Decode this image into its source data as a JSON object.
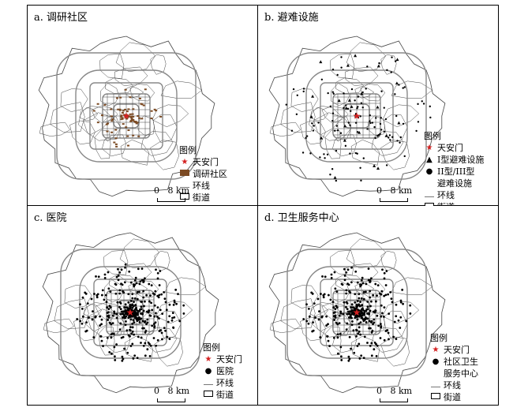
{
  "panels": [
    {
      "title": "a. 调研社区",
      "legend_title": "图例",
      "legend_items": [
        {
          "symbol": "star-icon",
          "label": "天安门"
        },
        {
          "symbol": "brown-square-icon",
          "label": "调研社区"
        },
        {
          "symbol": "line-icon",
          "label": "环线"
        },
        {
          "symbol": "square-icon",
          "label": "街道"
        }
      ],
      "scale": {
        "zero": "0",
        "dist": "8 km"
      }
    },
    {
      "title": "b. 避难设施",
      "legend_title": "图例",
      "legend_items": [
        {
          "symbol": "star-icon",
          "label": "天安门"
        },
        {
          "symbol": "triangle-icon",
          "label": "I型避难设施"
        },
        {
          "symbol": "dot-icon",
          "label": "II型/III型\n避难设施"
        },
        {
          "symbol": "line-icon",
          "label": "环线"
        },
        {
          "symbol": "square-icon",
          "label": "街道"
        }
      ],
      "scale": {
        "zero": "0",
        "dist": "8 km"
      }
    },
    {
      "title": "c. 医院",
      "legend_title": "图例",
      "legend_items": [
        {
          "symbol": "star-icon",
          "label": "天安门"
        },
        {
          "symbol": "dot-icon",
          "label": "医院"
        },
        {
          "symbol": "line-icon",
          "label": "环线"
        },
        {
          "symbol": "square-icon",
          "label": "街道"
        }
      ],
      "scale": {
        "zero": "0",
        "dist": "8 km"
      }
    },
    {
      "title": "d. 卫生服务中心",
      "legend_title": "图例",
      "legend_items": [
        {
          "symbol": "star-icon",
          "label": "天安门"
        },
        {
          "symbol": "dot-icon",
          "label": "社区卫生\n服务中心"
        },
        {
          "symbol": "line-icon",
          "label": "环线"
        },
        {
          "symbol": "square-icon",
          "label": "街道"
        }
      ],
      "scale": {
        "zero": "0",
        "dist": "8 km"
      }
    }
  ],
  "colors": {
    "landmark": "#d42020",
    "community": "#7b4a23",
    "ring": "#888888",
    "boundary": "#444444",
    "point": "#000000"
  }
}
